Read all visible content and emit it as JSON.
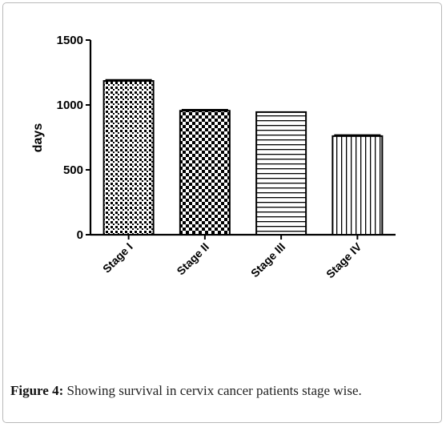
{
  "chart_data": {
    "type": "bar",
    "categories": [
      "Stage I",
      "Stage II",
      "Stage III",
      "Stage IV"
    ],
    "values": [
      1185,
      955,
      945,
      760
    ],
    "error": [
      8,
      8,
      0,
      8
    ],
    "patterns": [
      "dots",
      "checker",
      "hlines",
      "vlines"
    ],
    "title": "",
    "xlabel": "",
    "ylabel": "days",
    "ylim": [
      0,
      1500
    ],
    "yticks": [
      0,
      500,
      1000,
      1500
    ],
    "grid": false
  },
  "caption": {
    "label": "Figure 4",
    "separator": ":",
    "text": " Showing survival in cervix cancer patients stage wise."
  }
}
